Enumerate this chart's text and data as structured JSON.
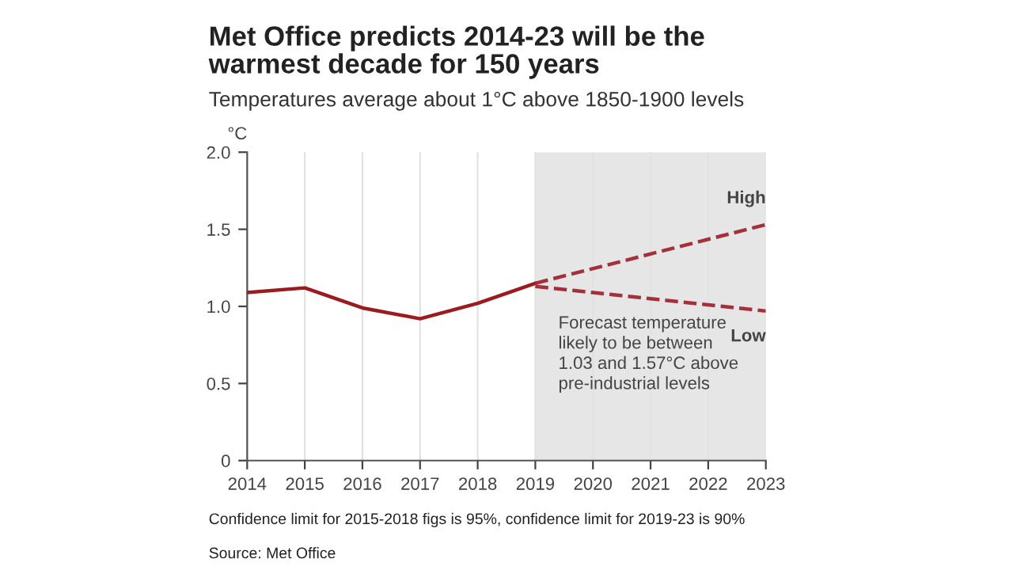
{
  "chart_data": {
    "type": "line",
    "title": "Met Office predicts 2014-23 will be the\nwarmest decade for 150 years",
    "subtitle": "Temperatures average about 1°C above 1850-1900 levels",
    "ylabel": "°C",
    "series": [
      {
        "color": "#9b1b1f",
        "line_style": "solid",
        "x": [
          2014,
          2015,
          2016,
          2017,
          2018,
          2019
        ],
        "values": [
          1.09,
          1.12,
          0.99,
          0.92,
          1.02,
          1.15
        ]
      },
      {
        "name": "High",
        "color": "#a3303a",
        "line_style": "dashed",
        "x": [
          2019,
          2023
        ],
        "values": [
          1.15,
          1.53
        ]
      },
      {
        "name": "Low",
        "color": "#a3303a",
        "line_style": "dashed",
        "x": [
          2019,
          2023
        ],
        "values": [
          1.13,
          0.97
        ]
      }
    ],
    "bands": [
      {
        "axis": "x",
        "from": 2019,
        "to": 2023,
        "color": "#e6e6e6"
      }
    ],
    "xlim": [
      2014,
      2023
    ],
    "xticks": [
      2014,
      2015,
      2016,
      2017,
      2018,
      2019,
      2020,
      2021,
      2022,
      2023
    ],
    "ylim": [
      0,
      2.0
    ],
    "yticks": [
      0,
      0.5,
      {
        "value": 1,
        "label": "1.0"
      },
      1.5,
      {
        "value": 2,
        "label": "2.0"
      }
    ],
    "grid": "x",
    "legend": false,
    "marker": "none",
    "annotations": [
      "Forecast temperature\nlikely to be between\n1.03 and 1.57°C above\npre-industrial levels",
      "Confidence limit for 2015-2018 figs is 95%, confidence limit for 2019-23 is 90%",
      "Source: Met Office"
    ]
  }
}
